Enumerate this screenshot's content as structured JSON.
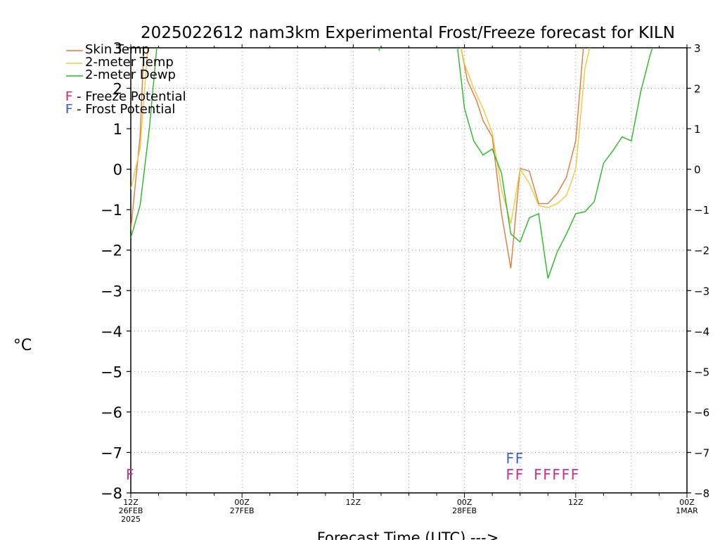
{
  "chart_data": {
    "type": "line",
    "title": "2025022612 nam3km Experimental Frost/Freeze forecast for KILN",
    "ylabel": "°C",
    "xlabel": "Forecast Time (UTC) --->",
    "ylim": [
      -8,
      3
    ],
    "xlim_hours": [
      0,
      60
    ],
    "y_ticks": [
      3,
      2,
      1,
      0,
      -1,
      -2,
      -3,
      -4,
      -5,
      -6,
      -7,
      -8
    ],
    "y_tick_labels": [
      "3",
      "2",
      "1",
      "0",
      "−1",
      "−2",
      "−3",
      "−4",
      "−5",
      "−6",
      "−7",
      "−8"
    ],
    "x_ticks": [
      {
        "h": 0,
        "lines": [
          "12Z",
          "26FEB",
          "2025"
        ]
      },
      {
        "h": 12,
        "lines": [
          "00Z",
          "27FEB"
        ]
      },
      {
        "h": 24,
        "lines": [
          "12Z"
        ]
      },
      {
        "h": 36,
        "lines": [
          "00Z",
          "28FEB"
        ]
      },
      {
        "h": 48,
        "lines": [
          "12Z"
        ]
      },
      {
        "h": 60,
        "lines": [
          "00Z",
          "1MAR"
        ]
      }
    ],
    "grid": true,
    "legend_position": "top-left",
    "series": [
      {
        "name": "Skin Temp",
        "color": "#e07b39",
        "points": [
          [
            0,
            -1.5
          ],
          [
            1,
            0.8
          ],
          [
            1.5,
            3.5
          ],
          [
            35.2,
            3.5
          ],
          [
            36.3,
            2.2
          ],
          [
            37.3,
            1.7
          ],
          [
            38,
            1.2
          ],
          [
            39,
            0.8
          ],
          [
            40,
            -1.1
          ],
          [
            41,
            -2.45
          ],
          [
            42,
            0.02
          ],
          [
            43,
            -0.05
          ],
          [
            44,
            -0.85
          ],
          [
            45,
            -0.85
          ],
          [
            46,
            -0.6
          ],
          [
            47,
            -0.2
          ],
          [
            48,
            0.7
          ],
          [
            49,
            3.5
          ],
          [
            60,
            3.5
          ]
        ]
      },
      {
        "name": "2-meter Temp",
        "color": "#f0c83a",
        "points": [
          [
            0,
            -0.5
          ],
          [
            1,
            0.5
          ],
          [
            2,
            3.5
          ],
          [
            35.2,
            3.5
          ],
          [
            36,
            2.6
          ],
          [
            37,
            2.0
          ],
          [
            38,
            1.5
          ],
          [
            39,
            0.9
          ],
          [
            40,
            -0.5
          ],
          [
            41,
            -1.35
          ],
          [
            42,
            0.0
          ],
          [
            43,
            -0.35
          ],
          [
            44,
            -0.9
          ],
          [
            45,
            -0.95
          ],
          [
            46,
            -0.85
          ],
          [
            47,
            -0.65
          ],
          [
            48,
            0.0
          ],
          [
            49,
            2.5
          ],
          [
            50,
            3.5
          ],
          [
            60,
            3.5
          ]
        ]
      },
      {
        "name": "2-meter Dewp",
        "color": "#22bb22",
        "points": [
          [
            0,
            -1.7
          ],
          [
            1,
            -0.9
          ],
          [
            2,
            1.0
          ],
          [
            3,
            3.5
          ],
          [
            26,
            3.5
          ],
          [
            26.8,
            2.95
          ],
          [
            27.4,
            3.5
          ],
          [
            35,
            3.5
          ],
          [
            36,
            1.5
          ],
          [
            37,
            0.7
          ],
          [
            38,
            0.35
          ],
          [
            39,
            0.5
          ],
          [
            40,
            -0.1
          ],
          [
            41,
            -1.6
          ],
          [
            42,
            -1.8
          ],
          [
            43,
            -1.2
          ],
          [
            44,
            -1.1
          ],
          [
            45,
            -2.7
          ],
          [
            46,
            -2.05
          ],
          [
            47,
            -1.6
          ],
          [
            48,
            -1.1
          ],
          [
            49,
            -1.05
          ],
          [
            50,
            -0.8
          ],
          [
            51,
            0.15
          ],
          [
            52,
            0.45
          ],
          [
            53,
            0.8
          ],
          [
            54,
            0.7
          ],
          [
            55,
            1.9
          ],
          [
            56,
            2.8
          ],
          [
            57,
            3.5
          ],
          [
            60,
            3.5
          ]
        ]
      }
    ],
    "potential_legend": [
      {
        "label": "F - Freeze Potential",
        "color": "#d0308a"
      },
      {
        "label": "F - Frost Potential",
        "color": "#3e64c8"
      }
    ],
    "frost_markers": {
      "label": "F",
      "color": "#3e64c8",
      "y": -7.1,
      "hours": [
        41,
        42
      ]
    },
    "freeze_markers": {
      "label": "F",
      "color": "#d0308a",
      "y": -7.5,
      "hours": [
        0,
        41,
        42,
        44,
        45,
        46,
        47,
        48
      ]
    }
  }
}
